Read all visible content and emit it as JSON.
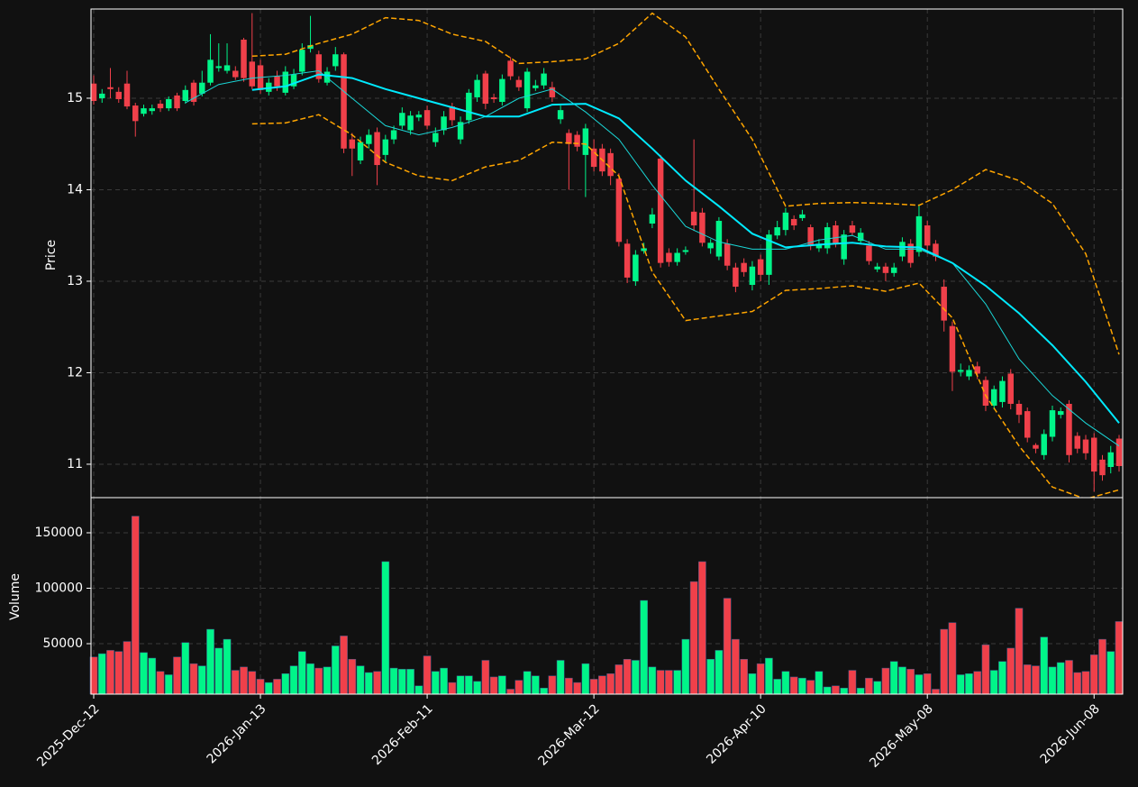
{
  "chart_data": [
    {
      "type": "candlestick",
      "ylabel": "Price",
      "ylim": [
        10.635,
        15.975
      ],
      "yticks": [
        11,
        12,
        13,
        14,
        15
      ],
      "grid": true,
      "up_color": "#00f589",
      "down_color": "#f0404a",
      "categories": [
        "2025-Dec-12",
        null,
        null,
        null,
        null,
        null,
        null,
        null,
        null,
        null,
        null,
        null,
        null,
        null,
        null,
        null,
        null,
        null,
        null,
        null,
        "2026-Jan-13",
        null,
        null,
        null,
        null,
        null,
        null,
        null,
        null,
        null,
        null,
        null,
        null,
        null,
        null,
        null,
        null,
        null,
        null,
        null,
        "2026-Feb-11",
        null,
        null,
        null,
        null,
        null,
        null,
        null,
        null,
        null,
        null,
        null,
        null,
        null,
        null,
        null,
        null,
        null,
        null,
        null,
        "2026-Mar-12",
        null,
        null,
        null,
        null,
        null,
        null,
        null,
        null,
        null,
        null,
        null,
        null,
        null,
        null,
        null,
        null,
        null,
        null,
        null,
        "2026-Apr-10",
        null,
        null,
        null,
        null,
        null,
        null,
        null,
        null,
        null,
        null,
        null,
        null,
        null,
        null,
        null,
        null,
        null,
        null,
        null,
        "2026-May-08",
        null,
        null,
        null,
        null,
        null,
        null,
        null,
        null,
        null,
        null,
        null,
        null,
        null,
        null,
        null,
        null,
        null,
        null,
        null,
        "2026-Jun-08",
        null,
        null,
        null
      ],
      "open": [
        15.16,
        15.0,
        15.12,
        15.07,
        15.16,
        14.92,
        14.83,
        14.86,
        14.94,
        14.89,
        15.03,
        14.97,
        15.17,
        15.05,
        15.17,
        15.33,
        15.3,
        15.3,
        15.64,
        15.4,
        15.36,
        15.07,
        15.24,
        15.06,
        15.13,
        15.29,
        15.54,
        15.48,
        15.17,
        15.35,
        15.48,
        14.55,
        14.32,
        14.5,
        14.63,
        14.38,
        14.55,
        14.7,
        14.65,
        14.79,
        14.87,
        14.52,
        14.65,
        14.91,
        14.55,
        14.76,
        15.01,
        15.27,
        15.01,
        14.96,
        15.41,
        15.2,
        14.89,
        15.11,
        15.14,
        15.12,
        14.77,
        14.62,
        14.6,
        14.38,
        14.45,
        14.45,
        14.4,
        14.12,
        13.41,
        13.0,
        13.33,
        13.63,
        14.34,
        13.31,
        13.21,
        13.32,
        13.76,
        13.75,
        13.36,
        13.27,
        13.41,
        13.15,
        13.2,
        12.96,
        13.24,
        13.07,
        13.5,
        13.56,
        13.68,
        13.69,
        13.59,
        13.36,
        13.36,
        13.61,
        13.24,
        13.61,
        13.44,
        13.39,
        13.13,
        13.16,
        13.09,
        13.27,
        13.41,
        13.32,
        13.61,
        13.41,
        12.94,
        12.51,
        12.01,
        11.96,
        12.07,
        11.92,
        11.64,
        11.68,
        11.99,
        11.66,
        11.58,
        11.21,
        11.1,
        11.3,
        11.54,
        11.66,
        11.31,
        11.27,
        11.29,
        11.05,
        10.97,
        11.28
      ],
      "high": [
        15.25,
        15.1,
        15.33,
        15.12,
        15.3,
        14.95,
        14.93,
        14.93,
        14.98,
        15.02,
        15.06,
        15.14,
        15.2,
        15.3,
        15.7,
        15.6,
        15.6,
        15.35,
        15.66,
        15.93,
        15.42,
        15.22,
        15.3,
        15.35,
        15.32,
        15.6,
        15.9,
        15.52,
        15.34,
        15.56,
        15.5,
        14.62,
        14.58,
        14.66,
        14.68,
        14.6,
        14.7,
        14.9,
        14.86,
        14.86,
        14.92,
        14.68,
        14.86,
        14.95,
        14.8,
        15.1,
        15.26,
        15.3,
        15.05,
        15.26,
        15.45,
        15.24,
        15.33,
        15.2,
        15.33,
        15.18,
        14.92,
        14.66,
        14.64,
        14.72,
        14.55,
        14.5,
        14.45,
        14.18,
        13.46,
        13.34,
        13.42,
        13.8,
        14.38,
        13.36,
        13.36,
        13.38,
        14.55,
        13.8,
        13.46,
        13.7,
        13.46,
        13.2,
        13.25,
        13.22,
        13.29,
        13.56,
        13.66,
        13.8,
        13.72,
        13.78,
        13.62,
        13.46,
        13.64,
        13.66,
        13.56,
        13.66,
        13.58,
        13.44,
        13.2,
        13.2,
        13.2,
        13.48,
        13.46,
        13.84,
        13.66,
        13.45,
        13.02,
        12.56,
        12.1,
        12.08,
        12.12,
        11.96,
        11.86,
        11.96,
        12.04,
        11.7,
        11.62,
        11.23,
        11.38,
        11.64,
        11.62,
        11.7,
        11.35,
        11.32,
        11.34,
        11.1,
        11.2,
        11.32
      ],
      "low": [
        14.93,
        14.95,
        15.0,
        14.95,
        14.88,
        14.58,
        14.8,
        14.82,
        14.85,
        14.86,
        14.86,
        14.94,
        14.92,
        15.02,
        15.14,
        15.29,
        15.27,
        15.2,
        15.18,
        15.1,
        15.05,
        15.03,
        15.08,
        15.03,
        15.1,
        15.25,
        15.5,
        15.17,
        15.14,
        15.3,
        14.4,
        14.15,
        14.28,
        14.45,
        14.05,
        14.3,
        14.5,
        14.66,
        14.6,
        14.75,
        14.66,
        14.47,
        14.6,
        14.7,
        14.5,
        14.72,
        14.96,
        14.88,
        14.95,
        14.92,
        15.2,
        15.08,
        14.85,
        15.08,
        15.1,
        14.96,
        14.72,
        14.0,
        14.42,
        13.92,
        14.2,
        14.15,
        14.05,
        13.38,
        12.98,
        12.95,
        13.3,
        13.58,
        13.15,
        13.16,
        13.17,
        13.29,
        13.55,
        13.38,
        13.3,
        13.23,
        13.12,
        12.88,
        13.05,
        12.9,
        13.0,
        12.96,
        13.46,
        13.5,
        13.56,
        13.66,
        13.34,
        13.32,
        13.3,
        13.37,
        13.18,
        13.5,
        13.4,
        13.18,
        13.1,
        13.0,
        13.05,
        13.22,
        13.15,
        13.27,
        13.3,
        13.22,
        12.45,
        11.8,
        11.96,
        11.92,
        11.93,
        11.58,
        11.6,
        11.62,
        11.6,
        11.45,
        11.24,
        11.12,
        11.05,
        11.25,
        11.5,
        11.02,
        11.12,
        11.05,
        10.7,
        10.82,
        10.9,
        10.92
      ],
      "close": [
        14.97,
        15.05,
        15.1,
        14.99,
        14.91,
        14.75,
        14.89,
        14.89,
        14.89,
        14.99,
        14.89,
        15.09,
        14.96,
        15.17,
        15.42,
        15.35,
        15.36,
        15.23,
        15.22,
        15.13,
        15.09,
        15.17,
        15.13,
        15.29,
        15.26,
        15.53,
        15.58,
        15.21,
        15.29,
        15.48,
        14.45,
        14.45,
        14.52,
        14.6,
        14.27,
        14.55,
        14.65,
        14.84,
        14.81,
        14.82,
        14.7,
        14.62,
        14.8,
        14.76,
        14.74,
        15.06,
        15.2,
        14.94,
        14.99,
        15.21,
        15.24,
        15.12,
        15.29,
        15.14,
        15.27,
        15.01,
        14.87,
        14.5,
        14.47,
        14.67,
        14.25,
        14.2,
        14.15,
        13.43,
        13.04,
        13.29,
        13.36,
        13.73,
        13.2,
        13.21,
        13.31,
        13.34,
        13.61,
        13.42,
        13.42,
        13.66,
        13.17,
        12.94,
        13.1,
        13.16,
        13.07,
        13.51,
        13.59,
        13.75,
        13.61,
        13.73,
        13.39,
        13.41,
        13.59,
        13.41,
        13.51,
        13.53,
        13.53,
        13.22,
        13.16,
        13.09,
        13.15,
        13.43,
        13.2,
        13.71,
        13.39,
        13.27,
        12.57,
        12.01,
        12.03,
        12.03,
        11.99,
        11.64,
        11.82,
        11.91,
        11.66,
        11.54,
        11.29,
        11.17,
        11.33,
        11.59,
        11.58,
        11.1,
        11.17,
        11.12,
        10.92,
        10.88,
        11.13,
        10.98
      ],
      "overlays": [
        {
          "color": "#1ad6d6",
          "width": 1,
          "dashed": false,
          "x": [
            11,
            15,
            19,
            23,
            27,
            31,
            35,
            39,
            43,
            47,
            51,
            55,
            59,
            63,
            67,
            71,
            75,
            79,
            83,
            87,
            91,
            95,
            99,
            103,
            107,
            111,
            115,
            119,
            123
          ],
          "values": [
            14.95,
            15.15,
            15.22,
            15.25,
            15.3,
            15.0,
            14.7,
            14.6,
            14.68,
            14.8,
            15.0,
            15.1,
            14.85,
            14.55,
            14.05,
            13.6,
            13.43,
            13.35,
            13.35,
            13.45,
            13.5,
            13.35,
            13.35,
            13.2,
            12.75,
            12.15,
            11.75,
            11.45,
            11.2
          ]
        },
        {
          "color": "#00eaff",
          "width": 2,
          "dashed": false,
          "x": [
            19,
            23,
            27,
            31,
            35,
            39,
            43,
            47,
            51,
            55,
            59,
            63,
            67,
            71,
            75,
            79,
            83,
            87,
            91,
            95,
            99,
            103,
            107,
            111,
            115,
            119,
            123
          ],
          "values": [
            15.09,
            15.13,
            15.26,
            15.22,
            15.1,
            15.0,
            14.9,
            14.8,
            14.8,
            14.93,
            14.94,
            14.78,
            14.45,
            14.1,
            13.82,
            13.52,
            13.37,
            13.4,
            13.42,
            13.38,
            13.37,
            13.2,
            12.95,
            12.65,
            12.3,
            11.9,
            11.45
          ]
        },
        {
          "color": "#ffa500",
          "width": 1.5,
          "dashed": true,
          "x": [
            19,
            23,
            27,
            31,
            35,
            39,
            43,
            47,
            51,
            55,
            59,
            63,
            67,
            71,
            75,
            79,
            83,
            87,
            91,
            95,
            99,
            103,
            107,
            111,
            115,
            119,
            123
          ],
          "values": [
            15.46,
            15.48,
            15.6,
            15.7,
            15.88,
            15.85,
            15.7,
            15.62,
            15.38,
            15.4,
            15.43,
            15.6,
            15.93,
            15.67,
            15.1,
            14.55,
            13.82,
            13.85,
            13.86,
            13.85,
            13.83,
            14.0,
            14.22,
            14.1,
            13.85,
            13.3,
            12.2
          ]
        },
        {
          "color": "#ffa500",
          "width": 1.5,
          "dashed": true,
          "x": [
            19,
            23,
            27,
            31,
            35,
            39,
            43,
            47,
            51,
            55,
            59,
            63,
            67,
            71,
            75,
            79,
            83,
            87,
            91,
            95,
            99,
            103,
            107,
            111,
            115,
            119,
            123
          ],
          "values": [
            14.72,
            14.73,
            14.82,
            14.6,
            14.3,
            14.15,
            14.1,
            14.25,
            14.32,
            14.52,
            14.5,
            14.15,
            13.1,
            12.57,
            12.62,
            12.67,
            12.9,
            12.92,
            12.95,
            12.89,
            12.98,
            12.6,
            11.75,
            11.2,
            10.75,
            10.62,
            10.72
          ]
        }
      ]
    },
    {
      "type": "bar",
      "ylabel": "Volume",
      "ylim": [
        4500,
        181700
      ],
      "yticks": [
        50000,
        100000,
        150000
      ],
      "grid": true,
      "values": [
        38000,
        41000,
        44000,
        43000,
        52000,
        165000,
        42000,
        37000,
        25000,
        22000,
        38000,
        51000,
        32000,
        30000,
        63000,
        46000,
        54000,
        26000,
        29000,
        25000,
        18000,
        15000,
        18000,
        23000,
        30000,
        43000,
        32000,
        28000,
        29000,
        48000,
        57000,
        36000,
        30000,
        24000,
        25000,
        124000,
        28000,
        27000,
        27000,
        12000,
        39000,
        25000,
        28000,
        15000,
        21000,
        21000,
        16000,
        35000,
        20000,
        21000,
        9000,
        17000,
        25000,
        21000,
        10000,
        21000,
        35000,
        19000,
        15000,
        32000,
        18000,
        21000,
        23000,
        31000,
        36000,
        35000,
        89000,
        29000,
        26000,
        26000,
        26000,
        54000,
        106000,
        124000,
        36000,
        44000,
        91000,
        54000,
        36000,
        23000,
        32000,
        37000,
        18000,
        25000,
        20000,
        19000,
        17000,
        25000,
        11000,
        12000,
        10000,
        26000,
        10000,
        19000,
        16000,
        28000,
        34000,
        29000,
        27000,
        22000,
        23000,
        9000,
        63000,
        69000,
        22000,
        23000,
        25000,
        49000,
        26000,
        34000,
        46000,
        82000,
        31000,
        30000,
        56000,
        29000,
        33000,
        35000,
        24000,
        25000,
        40000,
        54000,
        43000,
        70000
      ]
    }
  ]
}
